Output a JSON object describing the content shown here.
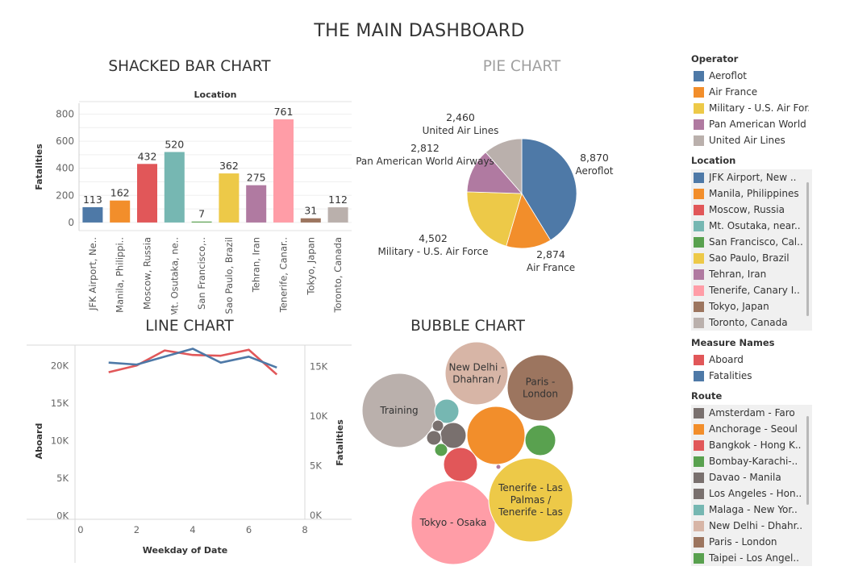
{
  "dashboard": {
    "title": "THE MAIN DASHBOARD"
  },
  "titles": {
    "bar": "SHACKED BAR  CHART",
    "pie": "PIE CHART",
    "line": "LINE CHART",
    "bubble": "BUBBLE CHART"
  },
  "colors": {
    "blue": "#4e79a7",
    "orange": "#f28e2b",
    "red": "#e15759",
    "teal": "#76b7b2",
    "green": "#59a14f",
    "yellow": "#edc948",
    "purple": "#b07aa1",
    "pink": "#ff9da7",
    "brown": "#9c755f",
    "gray": "#bab0ac",
    "darkgray": "#79706e",
    "tan": "#d7b5a6"
  },
  "legend": {
    "operator": {
      "title": "Operator",
      "items": [
        {
          "label": "Aeroflot",
          "color": "#4e79a7"
        },
        {
          "label": "Air France",
          "color": "#f28e2b"
        },
        {
          "label": "Military - U.S. Air For..",
          "color": "#edc948"
        },
        {
          "label": "Pan American World ..",
          "color": "#b07aa1"
        },
        {
          "label": "United Air Lines",
          "color": "#bab0ac"
        }
      ]
    },
    "location": {
      "title": "Location",
      "items": [
        {
          "label": "JFK Airport, New ..",
          "color": "#4e79a7"
        },
        {
          "label": "Manila, Philippines",
          "color": "#f28e2b"
        },
        {
          "label": "Moscow, Russia",
          "color": "#e15759"
        },
        {
          "label": "Mt. Osutaka, near..",
          "color": "#76b7b2"
        },
        {
          "label": "San Francisco, Cal..",
          "color": "#59a14f"
        },
        {
          "label": "Sao Paulo, Brazil",
          "color": "#edc948"
        },
        {
          "label": "Tehran, Iran",
          "color": "#b07aa1"
        },
        {
          "label": "Tenerife, Canary I..",
          "color": "#ff9da7"
        },
        {
          "label": "Tokyo, Japan",
          "color": "#9c755f"
        },
        {
          "label": "Toronto, Canada",
          "color": "#bab0ac"
        }
      ]
    },
    "measure": {
      "title": "Measure Names",
      "items": [
        {
          "label": "Aboard",
          "color": "#e15759"
        },
        {
          "label": "Fatalities",
          "color": "#4e79a7"
        }
      ]
    },
    "route": {
      "title": "Route",
      "items": [
        {
          "label": "Amsterdam - Faro",
          "color": "#79706e"
        },
        {
          "label": "Anchorage - Seoul",
          "color": "#f28e2b"
        },
        {
          "label": "Bangkok - Hong K..",
          "color": "#e15759"
        },
        {
          "label": "Bombay-Karachi-..",
          "color": "#59a14f"
        },
        {
          "label": "Davao - Manila",
          "color": "#79706e"
        },
        {
          "label": "Los Angeles - Hon..",
          "color": "#79706e"
        },
        {
          "label": "Malaga - New Yor..",
          "color": "#76b7b2"
        },
        {
          "label": "New Delhi - Dhahr..",
          "color": "#d7b5a6"
        },
        {
          "label": "Paris - London",
          "color": "#9c755f"
        },
        {
          "label": "Taipei - Los Angel..",
          "color": "#59a14f"
        }
      ]
    }
  },
  "chart_data": [
    {
      "id": "bar",
      "type": "bar",
      "title": "SHACKED BAR  CHART",
      "column_header": "Location",
      "ylabel": "Fatalities",
      "ylim": [
        -60,
        880
      ],
      "yticks": [
        0,
        200,
        400,
        600,
        800
      ],
      "grid": true,
      "categories": [
        "JFK Airport, Ne..",
        "Manila, Philippi..",
        "Moscow, Russia",
        "Mt. Osutaka, ne..",
        "San Francisco,..",
        "Sao Paulo, Brazil",
        "Tehran, Iran",
        "Tenerife, Canar..",
        "Tokyo, Japan",
        "Toronto, Canada"
      ],
      "values": [
        113,
        162,
        432,
        520,
        7,
        362,
        275,
        761,
        31,
        112
      ],
      "value_labels": [
        "113",
        "162",
        "432",
        "520",
        "7",
        "362",
        "275",
        "761",
        "31",
        "112"
      ],
      "colors": [
        "#4e79a7",
        "#f28e2b",
        "#e15759",
        "#76b7b2",
        "#59a14f",
        "#edc948",
        "#b07aa1",
        "#ff9da7",
        "#9c755f",
        "#bab0ac"
      ]
    },
    {
      "id": "pie",
      "type": "pie",
      "title": "PIE CHART",
      "slices": [
        {
          "label": "Aeroflot",
          "value": 8870,
          "value_label": "8,870",
          "color": "#4e79a7"
        },
        {
          "label": "Air France",
          "value": 2874,
          "value_label": "2,874",
          "color": "#f28e2b"
        },
        {
          "label": "Military - U.S. Air Force",
          "value": 4502,
          "value_label": "4,502",
          "color": "#edc948"
        },
        {
          "label": "Pan American World Airways",
          "value": 2812,
          "value_label": "2,812",
          "color": "#b07aa1"
        },
        {
          "label": "United Air Lines",
          "value": 2460,
          "value_label": "2,460",
          "color": "#bab0ac"
        }
      ]
    },
    {
      "id": "line",
      "type": "line",
      "title": "LINE CHART",
      "xlabel": "Weekday of Date",
      "ylabel_left": "Aboard",
      "ylabel_right": "Fatalities",
      "xlim": [
        -0.2,
        8
      ],
      "xticks": [
        "0",
        "2",
        "4",
        "6",
        "8"
      ],
      "xtick_values": [
        0,
        2,
        4,
        6,
        8
      ],
      "ylim_left": [
        -500,
        22500
      ],
      "yticks_left": [
        {
          "v": 0,
          "label": "0K"
        },
        {
          "v": 5000,
          "label": "5K"
        },
        {
          "v": 10000,
          "label": "10K"
        },
        {
          "v": 15000,
          "label": "15K"
        },
        {
          "v": 20000,
          "label": "20K"
        }
      ],
      "ylim_right": [
        -400,
        17000
      ],
      "yticks_right": [
        {
          "v": 0,
          "label": "0K"
        },
        {
          "v": 5000,
          "label": "5K"
        },
        {
          "v": 10000,
          "label": "10K"
        },
        {
          "v": 15000,
          "label": "15K"
        }
      ],
      "series": [
        {
          "name": "Aboard",
          "axis": "left",
          "color": "#e15759",
          "x": [
            1,
            2,
            3,
            4,
            5,
            6,
            7
          ],
          "y": [
            19100,
            20000,
            22000,
            21400,
            21300,
            22100,
            18800
          ]
        },
        {
          "name": "Fatalities",
          "axis": "right",
          "color": "#4e79a7",
          "x": [
            1,
            2,
            3,
            4,
            5,
            6,
            7
          ],
          "y": [
            15400,
            15200,
            16000,
            16800,
            15400,
            16000,
            14900
          ]
        }
      ]
    },
    {
      "id": "bubble",
      "type": "bubble",
      "title": "BUBBLE CHART",
      "bubbles": [
        {
          "label": "Tokyo - Osaka",
          "color": "#ff9da7"
        },
        {
          "label": "Tenerife - Las Palmas / Tenerife - Las",
          "lines": [
            "Tenerife - Las",
            "Palmas /",
            "Tenerife - Las"
          ],
          "color": "#edc948"
        },
        {
          "label": "Training",
          "color": "#bab0ac"
        },
        {
          "label": "New Delhi - Dhahran /",
          "lines": [
            "New Delhi -",
            "Dhahran /"
          ],
          "color": "#d7b5a6"
        },
        {
          "label": "Paris - London",
          "lines": [
            "Paris -",
            "London"
          ],
          "color": "#9c755f"
        },
        {
          "label": "",
          "color": "#f28e2b"
        },
        {
          "label": "",
          "color": "#e15759"
        },
        {
          "label": "",
          "color": "#59a14f"
        },
        {
          "label": "",
          "color": "#79706e"
        },
        {
          "label": "",
          "color": "#76b7b2"
        },
        {
          "label": "",
          "color": "#79706e"
        },
        {
          "label": "",
          "color": "#79706e"
        },
        {
          "label": "",
          "color": "#59a14f"
        },
        {
          "label": "",
          "color": "#b07aa1"
        }
      ]
    }
  ]
}
